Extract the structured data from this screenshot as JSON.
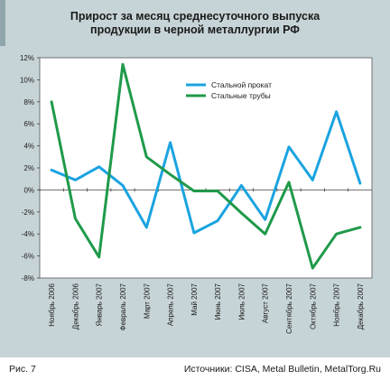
{
  "title": "Прирост за месяц среднесуточного выпуска продукции в черной металлургии РФ",
  "footer": {
    "figure_label": "Рис. 7",
    "source": "Источники: CISA, Metal Bulletin, MetalTorg.Ru"
  },
  "colors": {
    "series_1": "#1aa3e0",
    "series_2": "#1f9a4a",
    "panel_bg": "#c7d4d7",
    "plot_bg": "#ffffff"
  },
  "chart_data": {
    "type": "line",
    "title": "Прирост за месяц среднесуточного выпуска продукции в черной металлургии РФ",
    "xlabel": "",
    "ylabel": "",
    "ylim": [
      -8,
      12
    ],
    "yticks": [
      "-8%",
      "-6%",
      "-4%",
      "-2%",
      "0%",
      "2%",
      "4%",
      "6%",
      "8%",
      "10%",
      "12%"
    ],
    "ytick_values": [
      -8,
      -6,
      -4,
      -2,
      0,
      2,
      4,
      6,
      8,
      10,
      12
    ],
    "grid": false,
    "legend": "top-center",
    "categories": [
      "Ноябрь 2006",
      "Декабрь 2006",
      "Январь 2007",
      "Февраль 2007",
      "Март 2007",
      "Апрель 2007",
      "Май 2007",
      "Июнь 2007",
      "Июль 2007",
      "Август 2007",
      "Сентябрь 2007",
      "Октябрь 2007",
      "Ноябрь 2007",
      "Декабрь 2007"
    ],
    "series": [
      {
        "name": "Стальной прокат",
        "values": [
          1.8,
          0.9,
          2.1,
          0.4,
          -3.4,
          4.3,
          -3.9,
          -2.8,
          0.4,
          -2.7,
          3.9,
          0.9,
          7.1,
          0.6
        ]
      },
      {
        "name": "Стальные трубы",
        "values": [
          8.0,
          -2.6,
          -6.1,
          11.4,
          3.0,
          1.4,
          -0.1,
          -0.1,
          -2.1,
          -4.0,
          0.7,
          -7.1,
          -4.0,
          -3.4
        ]
      }
    ]
  }
}
